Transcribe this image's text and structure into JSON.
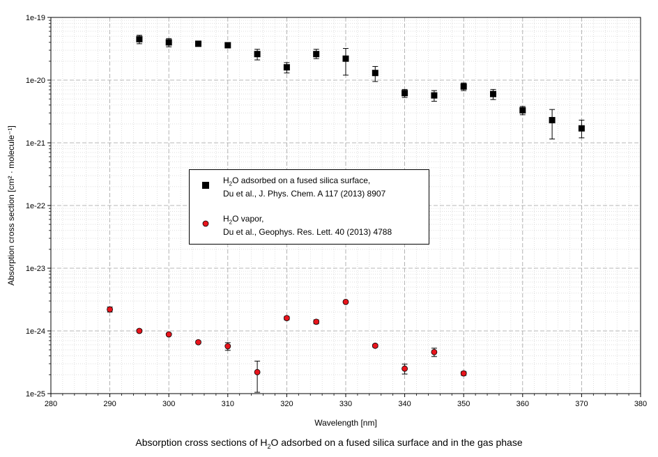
{
  "chart_data": {
    "type": "scatter",
    "title": "",
    "caption": {
      "before": "Absorption cross sections of H",
      "sub": "2",
      "after": "O adsorbed on a fused silica surface and in the gas phase"
    },
    "xlabel": "Wavelength [nm]",
    "ylabel": "Absorption cross section [cm² · molecule⁻¹]",
    "xlim": [
      280,
      380
    ],
    "ylim": [
      1e-25,
      1e-19
    ],
    "yscale": "log",
    "grid": true,
    "x_ticks": [
      "280",
      "290",
      "300",
      "310",
      "320",
      "330",
      "340",
      "350",
      "360",
      "370",
      "380"
    ],
    "y_ticks": [
      "1e-25",
      "1e-24",
      "1e-23",
      "1e-22",
      "1e-21",
      "1e-20",
      "1e-19"
    ],
    "legend_position": "center-left",
    "series": [
      {
        "name_parts": [
          "H",
          "2",
          "O adsorbed on a fused silica surface,"
        ],
        "reference": "Du et al., J. Phys. Chem. A 117 (2013) 8907",
        "marker": "square",
        "color": "#000000",
        "x": [
          295,
          300,
          305,
          310,
          315,
          320,
          325,
          330,
          335,
          340,
          345,
          350,
          355,
          360,
          365,
          370
        ],
        "y": [
          4.5e-20,
          4e-20,
          3.8e-20,
          3.6e-20,
          2.6e-20,
          1.6e-20,
          2.6e-20,
          2.2e-20,
          1.3e-20,
          6.2e-21,
          5.7e-21,
          7.9e-21,
          6e-21,
          3.3e-21,
          2.3e-21,
          1.7e-21
        ],
        "y_low": [
          3.8e-20,
          3.4e-20,
          3.5e-20,
          3.3e-20,
          2.1e-20,
          1.3e-20,
          2.2e-20,
          1.2e-20,
          9.5e-21,
          5.3e-21,
          4.6e-21,
          6.8e-21,
          4.9e-21,
          2.8e-21,
          1.15e-21,
          1.2e-21
        ],
        "y_high": [
          5.2e-20,
          4.6e-20,
          4.1e-20,
          3.9e-20,
          3.1e-20,
          1.9e-20,
          3.1e-20,
          3.2e-20,
          1.65e-20,
          7.1e-21,
          6.8e-21,
          9e-21,
          7.1e-21,
          3.8e-21,
          3.4e-21,
          2.3e-21
        ]
      },
      {
        "name_parts": [
          "H",
          "2",
          "O vapor,"
        ],
        "reference": "Du et al., Geophys. Res. Lett. 40 (2013) 4788",
        "marker": "circle",
        "color": "#e8141c",
        "x": [
          290,
          295,
          300,
          305,
          310,
          315,
          320,
          325,
          330,
          335,
          340,
          345,
          350
        ],
        "y": [
          2.2e-24,
          1e-24,
          8.8e-25,
          6.6e-25,
          5.7e-25,
          2.2e-25,
          1.6e-24,
          1.4e-24,
          2.9e-24,
          5.8e-25,
          2.5e-25,
          4.6e-25,
          2.1e-25
        ],
        "y_low": [
          2e-24,
          9.5e-25,
          8.5e-25,
          6.3e-25,
          4.9e-25,
          1.05e-25,
          1.5e-24,
          1.3e-24,
          2.8e-24,
          5.5e-25,
          2.05e-25,
          3.9e-25,
          1.95e-25
        ],
        "y_high": [
          2.4e-24,
          1.05e-24,
          9.1e-25,
          6.9e-25,
          6.5e-25,
          3.3e-25,
          1.7e-24,
          1.5e-24,
          3e-24,
          6.1e-25,
          2.95e-25,
          5.3e-25,
          2.25e-25
        ]
      }
    ]
  }
}
